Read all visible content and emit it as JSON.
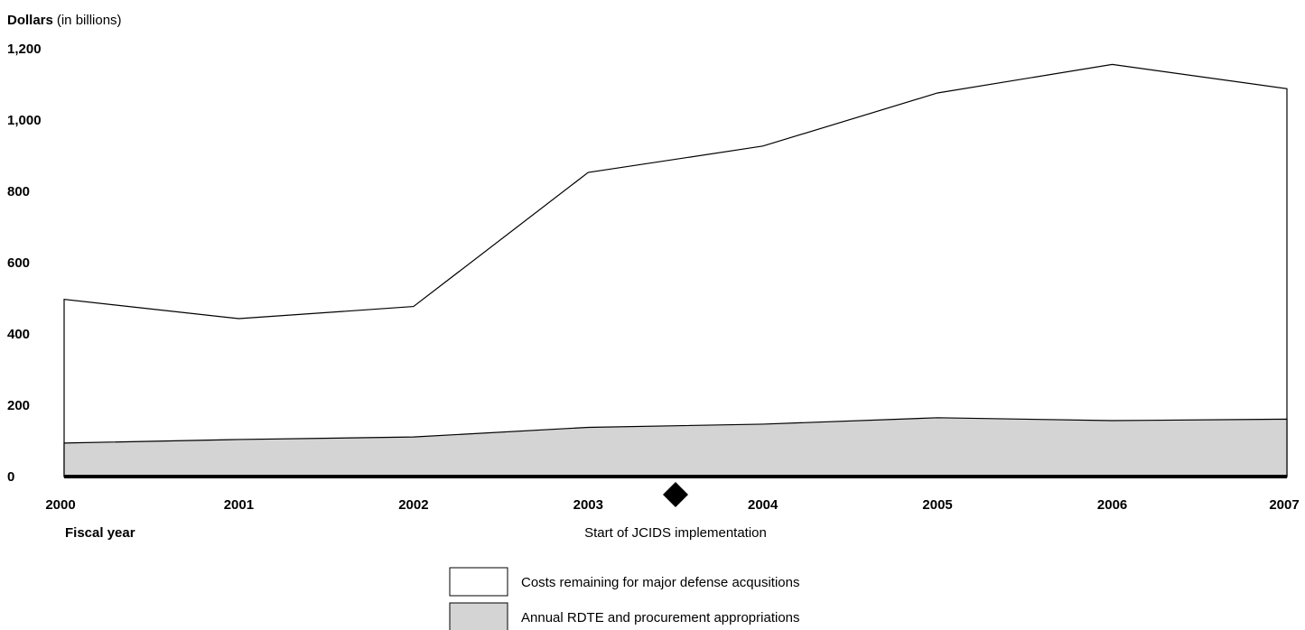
{
  "chart_data": {
    "type": "area",
    "ylabel_bold": "Dollars",
    "ylabel_rest": "(in billions)",
    "xlabel": "Fiscal year",
    "x": [
      "2000",
      "2001",
      "2002",
      "2003",
      "2004",
      "2005",
      "2006",
      "2007"
    ],
    "y_ticks": [
      "0",
      "200",
      "400",
      "600",
      "800",
      "1,000",
      "1,200"
    ],
    "ylim": [
      0,
      1200
    ],
    "grid": false,
    "legend_position": "bottom-center",
    "series": [
      {
        "name": "Costs remaining for major defense acqusitions",
        "values": [
          497,
          443,
          477,
          853,
          927,
          1076,
          1156,
          1088
        ],
        "fill": "#ffffff",
        "stroke": "#000000"
      },
      {
        "name": "Annual RDTE and procurement appropriations",
        "values": [
          94,
          104,
          111,
          138,
          147,
          165,
          157,
          161
        ],
        "fill": "#d4d4d4",
        "stroke": "#000000"
      }
    ],
    "annotations": [
      {
        "text": "Start of JCIDS implementation",
        "x": 2003.5,
        "marker": "diamond"
      }
    ]
  }
}
